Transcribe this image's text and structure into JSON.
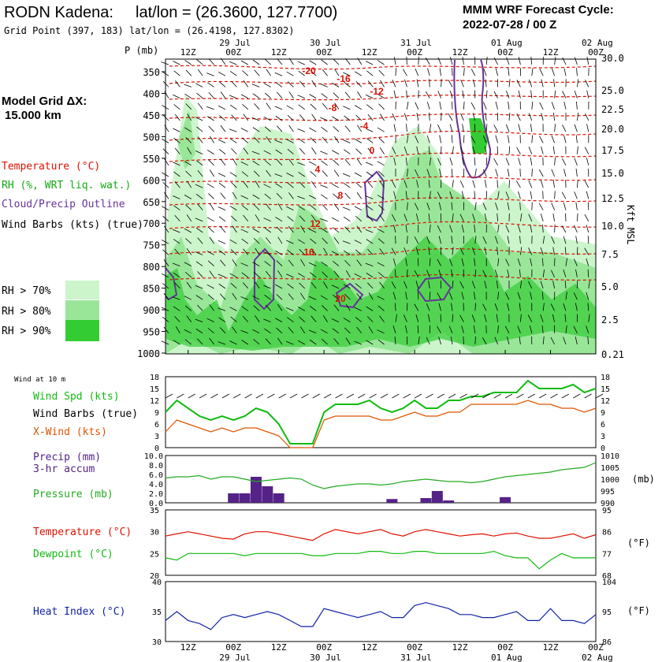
{
  "header": {
    "station": "RODN Kadena:",
    "latlon": "lat/lon = (26.3600, 127.7700)",
    "grid_point": "Grid Point (397, 183) lat/lon = (26.4198, 127.8302)",
    "cycle_line1": "MMM WRF Forecast Cycle:",
    "cycle_line2": "2022-07-28 / 00  Z"
  },
  "left_panel": {
    "model_grid_title": "Model Grid ΔX:",
    "model_grid_value": "15.000 km",
    "legend_temperature": "Temperature (°C)",
    "legend_rh": "RH (%, WRT liq. wat.)",
    "legend_cloud": "Cloud/Precip Outline",
    "legend_wind": "Wind Barbs (kts) (true)",
    "rh_70": "RH > 70%",
    "rh_80": "RH > 80%",
    "rh_90": "RH > 90%"
  },
  "colors": {
    "temperature": "#dd1100",
    "rh_text": "#11aa11",
    "cloud": "#663399",
    "rh70": "#ccf5cc",
    "rh80": "#99e699",
    "rh90": "#33cc33",
    "xwind": "#dd5500",
    "dewpoint": "#11bb11",
    "heat_index": "#1122aa",
    "precip": "#552288",
    "pressure": "#22aa22"
  },
  "time_axis": {
    "top_dates": [
      "29 Jul",
      "30 Jul",
      "31 Jul",
      "01 Aug",
      "02 Aug"
    ],
    "bottom_dates": [
      "29 Jul",
      "30 Jul",
      "31 Jul",
      "01 Aug",
      "02 Aug"
    ],
    "hour_ticks": [
      "12Z",
      "00Z",
      "12Z",
      "00Z",
      "12Z",
      "00Z",
      "12Z",
      "00Z",
      "12Z",
      "00Z"
    ]
  },
  "sounding": {
    "p_label": "P  (mb)",
    "kft_label": "Kft MSL",
    "pressure_ticks": [
      "350",
      "400",
      "450",
      "500",
      "550",
      "600",
      "650",
      "700",
      "750",
      "800",
      "850",
      "900",
      "950",
      "1000"
    ],
    "kft_ticks": [
      "30.0",
      "25.0",
      "22.5",
      "20.0",
      "17.5",
      "15.0",
      "12.5",
      "10.0",
      "7.5",
      "5.0",
      "2.5",
      "0.21"
    ],
    "temp_labels": [
      "-20",
      "-16",
      "-12",
      "-8",
      "-4",
      "0",
      "4",
      "8",
      "12",
      "16",
      "20"
    ]
  },
  "wind_panel": {
    "header": "Wind at 10 m",
    "label_speed": "Wind Spd (kts)",
    "label_barbs": "Wind Barbs (true)",
    "label_xwind": "X-Wind (kts)",
    "ticks": [
      "18",
      "15",
      "12",
      "9",
      "6",
      "3",
      "0"
    ]
  },
  "precip_panel": {
    "label_precip": "Precip (mm)",
    "label_accum": "3-hr accum",
    "label_pressure": "Pressure (mb)",
    "left_ticks": [
      "10.0",
      "8.0",
      "6.0",
      "4.0",
      "2.0",
      "0.0"
    ],
    "right_ticks": [
      "1010",
      "1005",
      "1000",
      "995",
      "990"
    ],
    "unit_right": "(mb)"
  },
  "temp_panel": {
    "label_temp": "Temperature (°C)",
    "label_dew": "Dewpoint (°C)",
    "left_ticks": [
      "35",
      "30",
      "25",
      "20"
    ],
    "right_ticks": [
      "95",
      "86",
      "77",
      "68"
    ],
    "unit_right": "(°F)"
  },
  "hi_panel": {
    "label": "Heat Index (°C)",
    "left_ticks": [
      "40",
      "35",
      "30"
    ],
    "right_ticks": [
      "104",
      "95",
      "86"
    ],
    "unit_right": "(°F)"
  },
  "chart_data": [
    {
      "type": "line",
      "panel": "10 m wind",
      "x": [
        "07-28 06Z",
        "07-28 09Z",
        "07-28 12Z",
        "07-28 15Z",
        "07-28 18Z",
        "07-28 21Z",
        "07-29 00Z",
        "07-29 03Z",
        "07-29 06Z",
        "07-29 09Z",
        "07-29 12Z",
        "07-29 15Z",
        "07-29 18Z",
        "07-29 21Z",
        "07-30 00Z",
        "07-30 03Z",
        "07-30 06Z",
        "07-30 09Z",
        "07-30 12Z",
        "07-30 15Z",
        "07-30 18Z",
        "07-30 21Z",
        "07-31 00Z",
        "07-31 03Z",
        "07-31 06Z",
        "07-31 09Z",
        "07-31 12Z",
        "07-31 15Z",
        "07-31 18Z",
        "07-31 21Z",
        "08-01 00Z",
        "08-01 03Z",
        "08-01 06Z",
        "08-01 09Z",
        "08-01 12Z",
        "08-01 15Z",
        "08-01 18Z",
        "08-01 21Z",
        "08-02 00Z"
      ],
      "series": [
        {
          "name": "Wind Spd (kts)",
          "values": [
            9,
            12,
            10,
            8,
            7,
            8,
            7,
            8,
            10,
            9,
            6,
            1,
            1,
            1,
            9,
            11,
            11,
            11,
            12,
            10,
            9,
            10,
            12,
            10,
            10,
            12,
            12,
            13,
            13,
            14,
            14,
            14,
            17,
            15,
            15,
            15,
            16,
            14,
            15
          ]
        },
        {
          "name": "X-Wind (kts)",
          "values": [
            4,
            7,
            6,
            5,
            4,
            5,
            4,
            5,
            5,
            4,
            3,
            0,
            0,
            0,
            7,
            8,
            8,
            8,
            8,
            7,
            7,
            8,
            9,
            8,
            8,
            9,
            9,
            11,
            11,
            11,
            11,
            11,
            12,
            11,
            11,
            10,
            10,
            9,
            10
          ]
        }
      ],
      "ylim": [
        0,
        18
      ]
    },
    {
      "type": "bar",
      "panel": "precip and pressure",
      "x": [
        "07-29 00Z",
        "07-29 03Z",
        "07-29 06Z",
        "07-29 09Z",
        "07-29 12Z",
        "07-30 18Z",
        "07-31 03Z",
        "07-31 06Z",
        "07-31 09Z",
        "08-01 00Z"
      ],
      "series": [
        {
          "name": "Precip (mm)",
          "values": [
            2.0,
            2.0,
            5.5,
            3.5,
            2.0,
            0.8,
            1.0,
            2.5,
            0.5,
            1.2
          ]
        }
      ],
      "ylim": [
        0,
        10
      ],
      "pressure_mb": [
        1000.5,
        1001,
        1001,
        1001.5,
        1000,
        1001,
        1001,
        1000,
        999,
        999.5,
        1000,
        1000.5,
        1000,
        997.5,
        996,
        997,
        997.5,
        998,
        998,
        997.5,
        998,
        999,
        999.5,
        1000,
        999.5,
        999,
        999,
        998.5,
        999,
        1000,
        1001,
        1001.5,
        1002,
        1002.5,
        1003,
        1004,
        1004.5,
        1005,
        1007
      ],
      "pressure_ylim": [
        990,
        1010
      ]
    },
    {
      "type": "line",
      "panel": "temperature and dewpoint",
      "series": [
        {
          "name": "Temperature (°C)",
          "values": [
            29,
            29.5,
            30,
            29.5,
            29,
            28.5,
            28.3,
            29.5,
            30,
            30,
            29.5,
            29,
            28.5,
            28,
            29.5,
            30.5,
            30,
            29.5,
            30,
            30.5,
            29.5,
            29,
            30,
            30.5,
            30,
            29.5,
            29,
            29.3,
            29.5,
            29,
            29.5,
            29.7,
            29,
            28.5,
            28.5,
            29,
            29.5,
            28.5,
            29.3
          ]
        },
        {
          "name": "Dewpoint (°C)",
          "values": [
            24,
            23.5,
            25,
            25,
            25,
            25,
            25,
            24.5,
            25,
            25,
            25,
            25,
            25,
            24.5,
            24.5,
            25,
            25,
            25,
            25.5,
            25.5,
            25,
            25,
            25.5,
            25.5,
            25,
            25,
            25,
            25,
            25,
            25.5,
            24.5,
            24,
            24,
            21.5,
            23.5,
            25,
            24,
            24,
            24
          ]
        }
      ],
      "ylim": [
        20,
        35
      ]
    },
    {
      "type": "line",
      "panel": "heat index",
      "series": [
        {
          "name": "Heat Index (°C)",
          "values": [
            33.5,
            35,
            33.5,
            33,
            32,
            34,
            34.5,
            34,
            34.5,
            35,
            34.5,
            33.5,
            32.5,
            32.5,
            35.5,
            35,
            34.5,
            34,
            34.5,
            35,
            34,
            34,
            36,
            36.5,
            36,
            35.5,
            34.5,
            34.5,
            34,
            34,
            34.5,
            35,
            33.5,
            33.5,
            35.5,
            33.5,
            33.5,
            33,
            34.5
          ]
        }
      ],
      "ylim": [
        30,
        40
      ]
    }
  ]
}
